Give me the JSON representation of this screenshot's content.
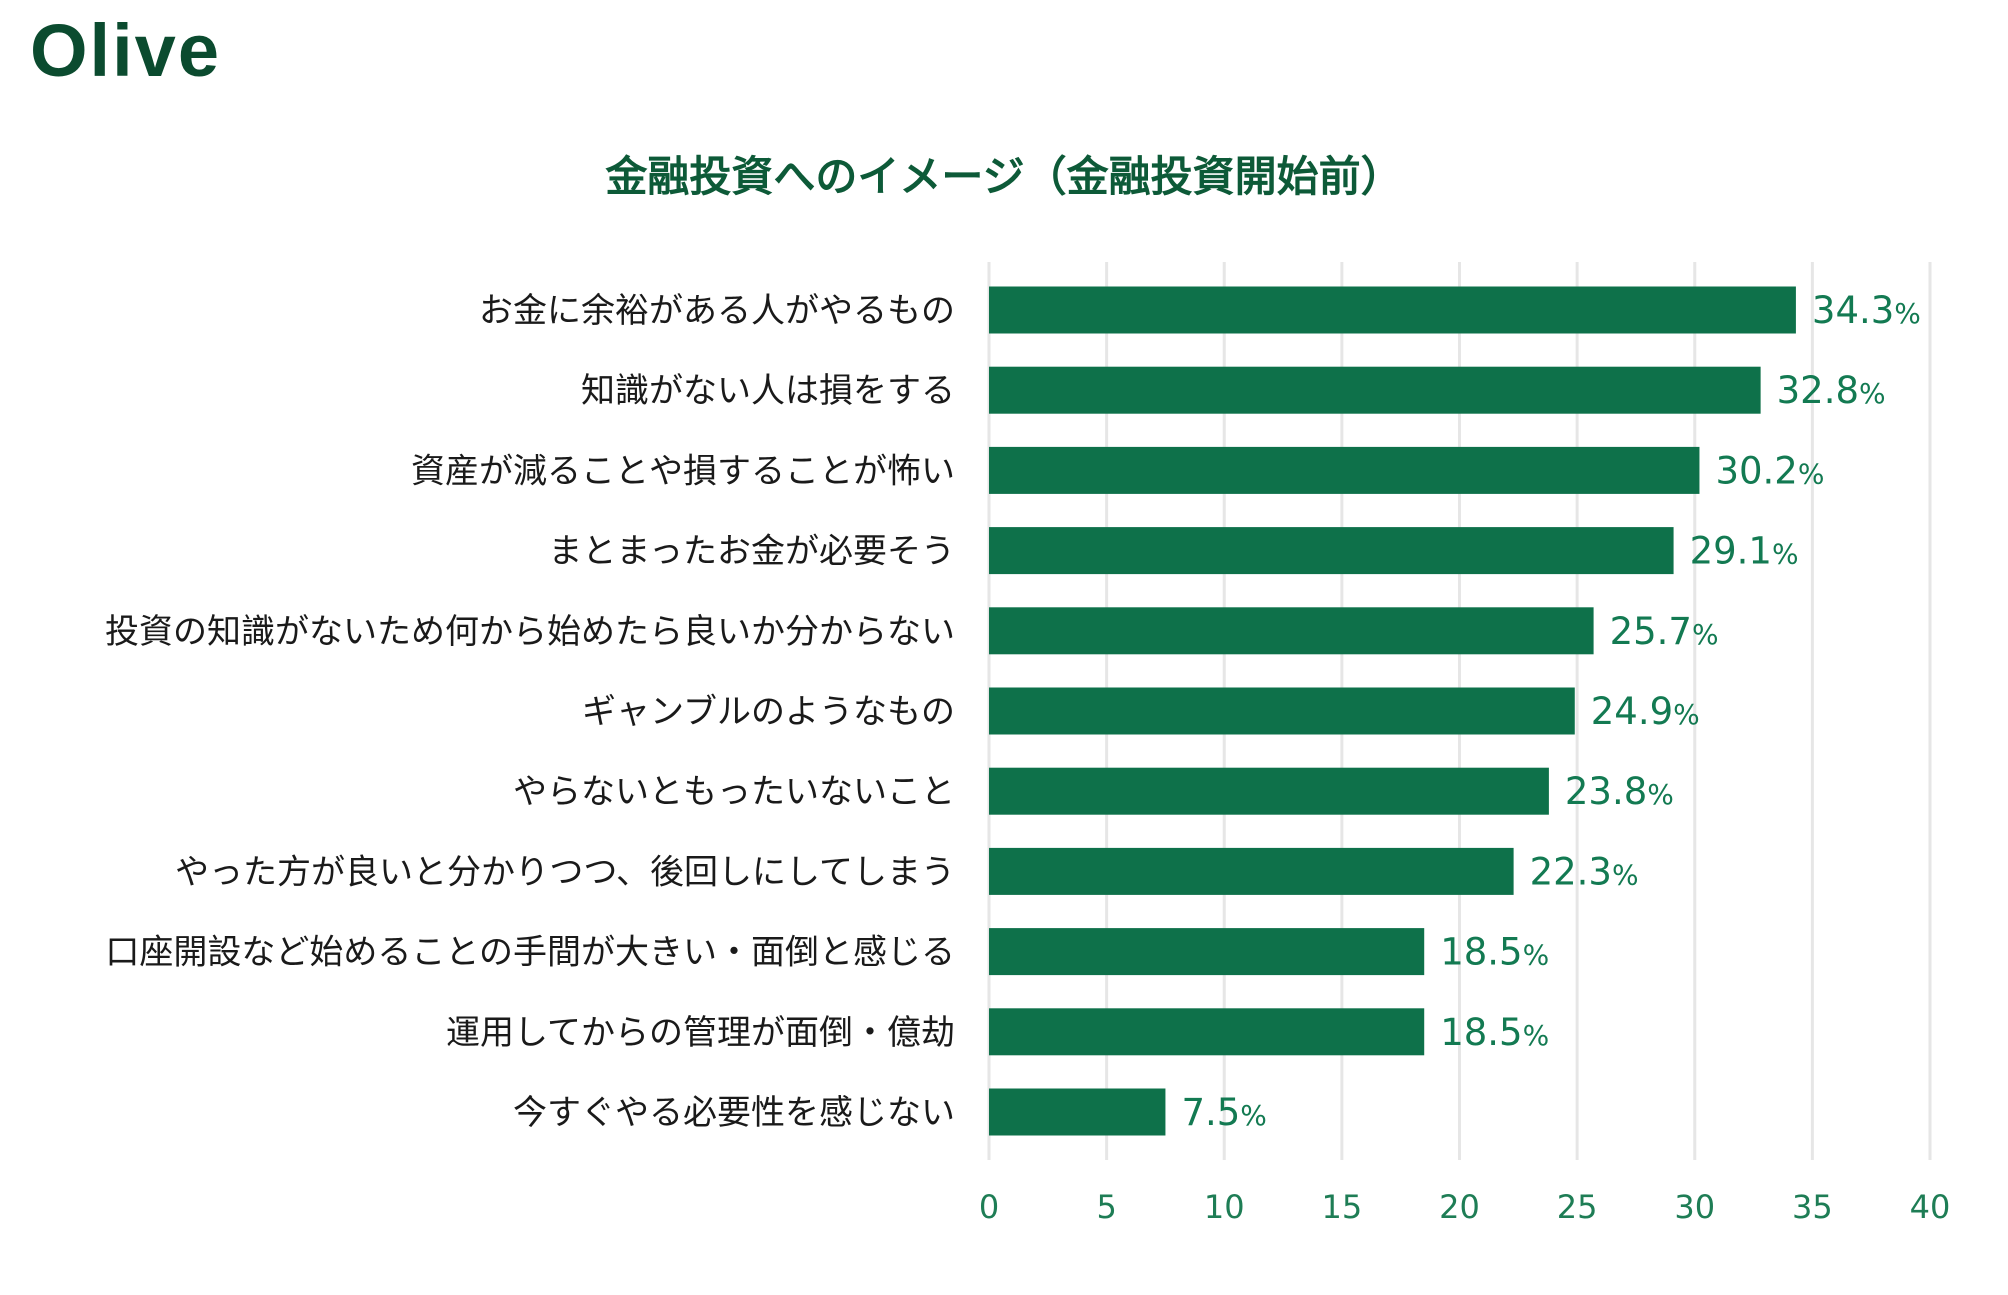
{
  "brand": {
    "logo": "Olive"
  },
  "colors": {
    "bar": "#0e714a",
    "grid": "#e6e6e6",
    "value_text": "#137a52",
    "tick_text": "#1e7d55",
    "title_text": "#0d5a38",
    "logo_text": "#0b4b2f"
  },
  "chart_data": {
    "type": "bar",
    "orientation": "horizontal",
    "title": "金融投資へのイメージ（金融投資開始前）",
    "xlabel": "",
    "ylabel": "",
    "categories": [
      "お金に余裕がある人がやるもの",
      "知識がない人は損をする",
      "資産が減ることや損することが怖い",
      "まとまったお金が必要そう",
      "投資の知識がないため何から始めたら良いか分からない",
      "ギャンブルのようなもの",
      "やらないともったいないこと",
      "やった方が良いと分かりつつ、後回しにしてしまう",
      "口座開設など始めることの手間が大きい・面倒と感じる",
      "運用してからの管理が面倒・億劫",
      "今すぐやる必要性を感じない"
    ],
    "values": [
      34.3,
      32.8,
      30.2,
      29.1,
      25.7,
      24.9,
      23.8,
      22.3,
      18.5,
      18.5,
      7.5
    ],
    "value_unit": "%",
    "xlim": [
      0,
      40
    ],
    "xticks": [
      0,
      5,
      10,
      15,
      20,
      25,
      30,
      35,
      40
    ],
    "grid": true,
    "legend": "none"
  }
}
